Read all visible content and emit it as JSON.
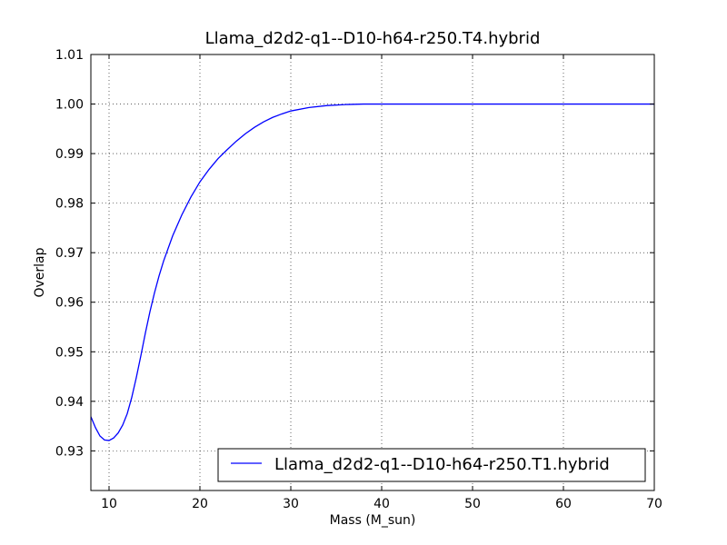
{
  "chart_data": {
    "type": "line",
    "title": "Llama_d2d2-q1--D10-h64-r250.T4.hybrid",
    "xlabel": "Mass (M_sun)",
    "ylabel": "Overlap",
    "xlim": [
      8,
      70
    ],
    "ylim": [
      0.922,
      1.01
    ],
    "xticks": [
      10,
      20,
      30,
      40,
      50,
      60,
      70
    ],
    "xtick_labels": [
      "10",
      "20",
      "30",
      "40",
      "50",
      "60",
      "70"
    ],
    "yticks": [
      0.93,
      0.94,
      0.95,
      0.96,
      0.97,
      0.98,
      0.99,
      1.0,
      1.01
    ],
    "ytick_labels": [
      "0.93",
      "0.94",
      "0.95",
      "0.96",
      "0.97",
      "0.98",
      "0.99",
      "1.00",
      "1.01"
    ],
    "grid": true,
    "legend_position": "bottom-right",
    "series": [
      {
        "name": "Llama_d2d2-q1--D10-h64-r250.T1.hybrid",
        "color": "#0000ff",
        "x": [
          8,
          8.5,
          9,
          9.5,
          10,
          10.5,
          11,
          11.5,
          12,
          12.5,
          13,
          13.5,
          14,
          14.5,
          15,
          15.5,
          16,
          17,
          18,
          19,
          20,
          21,
          22,
          23,
          24,
          25,
          26,
          27,
          28,
          29,
          30,
          32,
          34,
          36,
          38,
          40,
          45,
          50,
          55,
          60,
          65,
          70
        ],
        "values": [
          0.9369,
          0.9347,
          0.933,
          0.9322,
          0.9321,
          0.9326,
          0.9336,
          0.9352,
          0.9375,
          0.9408,
          0.9448,
          0.9492,
          0.9538,
          0.9581,
          0.9619,
          0.9653,
          0.9683,
          0.9734,
          0.9776,
          0.9812,
          0.9843,
          0.9868,
          0.989,
          0.9908,
          0.9925,
          0.994,
          0.9953,
          0.9964,
          0.9973,
          0.998,
          0.9986,
          0.9993,
          0.9997,
          0.9999,
          1.0,
          1.0,
          1.0,
          1.0,
          1.0,
          1.0,
          1.0,
          1.0
        ]
      }
    ]
  }
}
